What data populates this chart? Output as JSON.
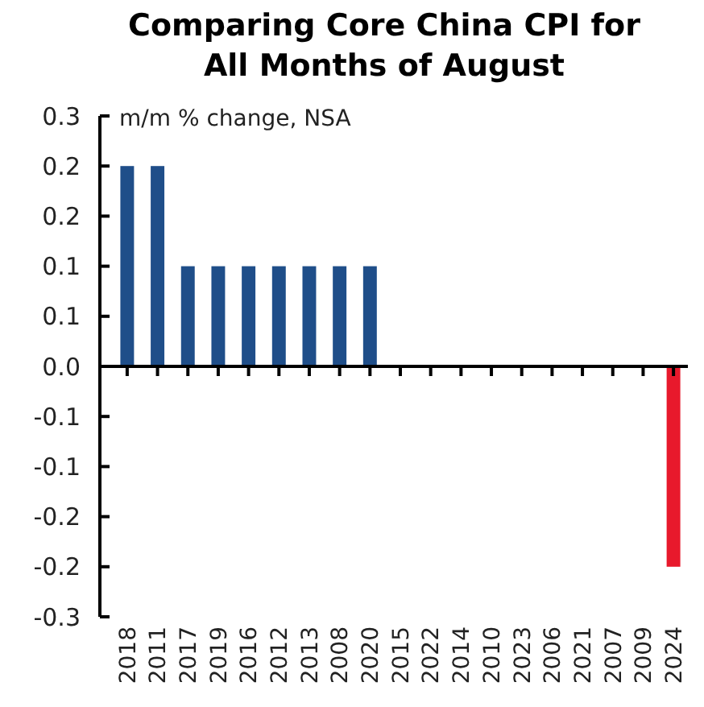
{
  "chart_data": {
    "type": "bar",
    "title": "Comparing Core China CPI for All Months of August",
    "subtitle": "m/m % change, NSA",
    "categories": [
      "2018",
      "2011",
      "2017",
      "2019",
      "2016",
      "2012",
      "2013",
      "2008",
      "2020",
      "2015",
      "2022",
      "2014",
      "2010",
      "2023",
      "2006",
      "2021",
      "2007",
      "2009",
      "2024"
    ],
    "values": [
      0.2,
      0.2,
      0.1,
      0.1,
      0.1,
      0.1,
      0.1,
      0.1,
      0.1,
      0,
      0,
      0,
      0,
      0,
      0,
      0,
      0,
      0,
      -0.2
    ],
    "colors": [
      "#1f4e89",
      "#1f4e89",
      "#1f4e89",
      "#1f4e89",
      "#1f4e89",
      "#1f4e89",
      "#1f4e89",
      "#1f4e89",
      "#1f4e89",
      "#1f4e89",
      "#1f4e89",
      "#1f4e89",
      "#1f4e89",
      "#1f4e89",
      "#1f4e89",
      "#1f4e89",
      "#1f4e89",
      "#1f4e89",
      "#e8192c"
    ],
    "ylim": [
      -0.25,
      0.25
    ],
    "yticks": [
      {
        "value": 0.25,
        "label": "0.3"
      },
      0.2,
      {
        "value": 0.15,
        "label": "0.2"
      },
      0.1,
      {
        "value": 0.05,
        "label": "0.1"
      },
      {
        "value": 0,
        "label": "0.0"
      },
      {
        "value": -0.05,
        "label": "-0.1"
      },
      -0.1,
      {
        "value": -0.15,
        "label": "-0.2"
      },
      -0.2,
      {
        "value": -0.25,
        "label": "-0.3"
      }
    ]
  }
}
